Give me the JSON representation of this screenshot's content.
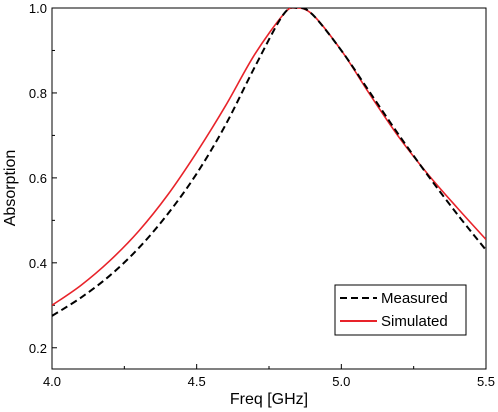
{
  "chart_data": {
    "type": "line",
    "xlabel": "Freq [GHz]",
    "ylabel": "Absorption",
    "xlim": [
      4.0,
      5.5
    ],
    "ylim": [
      0.15,
      1.0
    ],
    "xticks": [
      "4.0",
      "4.5",
      "5.0",
      "5.5"
    ],
    "yticks": [
      "0.2",
      "0.4",
      "0.6",
      "0.8",
      "1.0"
    ],
    "grid": false,
    "legend_position": "bottom-right",
    "series": [
      {
        "name": "Measured",
        "color": "#000000",
        "style": "dashed",
        "x": [
          4.0,
          4.1,
          4.2,
          4.3,
          4.4,
          4.5,
          4.6,
          4.7,
          4.8,
          4.85,
          4.9,
          5.0,
          5.1,
          5.2,
          5.3,
          5.4,
          5.5
        ],
        "y": [
          0.275,
          0.318,
          0.37,
          0.435,
          0.515,
          0.61,
          0.725,
          0.86,
          0.985,
          1.0,
          0.985,
          0.9,
          0.8,
          0.7,
          0.605,
          0.515,
          0.43
        ]
      },
      {
        "name": "Simulated",
        "color": "#e8232a",
        "style": "solid",
        "x": [
          4.0,
          4.1,
          4.2,
          4.3,
          4.4,
          4.5,
          4.6,
          4.7,
          4.8,
          4.84,
          4.9,
          5.0,
          5.1,
          5.2,
          5.3,
          5.4,
          5.5
        ],
        "y": [
          0.3,
          0.347,
          0.405,
          0.475,
          0.56,
          0.66,
          0.77,
          0.89,
          0.985,
          1.0,
          0.985,
          0.9,
          0.795,
          0.695,
          0.608,
          0.53,
          0.455
        ]
      }
    ]
  }
}
